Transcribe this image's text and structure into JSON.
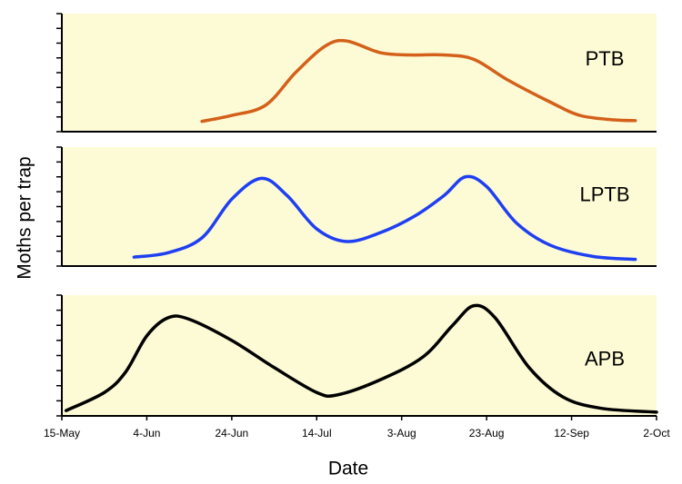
{
  "chart_data": [
    {
      "type": "line",
      "xlim": [
        0,
        140
      ],
      "ylim": [
        0,
        8
      ],
      "yticks": [
        0,
        1,
        2,
        3,
        4,
        5,
        6,
        7,
        8
      ],
      "series": [
        {
          "name": "PTB",
          "color": "#d4601a",
          "x": [
            33,
            40,
            48,
            55,
            62,
            67,
            75,
            82,
            90,
            97,
            105,
            115,
            122,
            130,
            135
          ],
          "values": [
            0.7,
            1.1,
            1.8,
            4.0,
            5.8,
            6.15,
            5.35,
            5.2,
            5.2,
            4.9,
            3.5,
            2.0,
            1.1,
            0.8,
            0.75
          ]
        }
      ]
    },
    {
      "type": "line",
      "ylabel": "Moths per trap",
      "xlim": [
        0,
        140
      ],
      "ylim": [
        0,
        8
      ],
      "yticks": [
        0,
        1,
        2,
        3,
        4,
        5,
        6,
        7,
        8
      ],
      "series": [
        {
          "name": "LPTB",
          "color": "#1f3ff2",
          "x": [
            17,
            25,
            33,
            40,
            47,
            53,
            60,
            67,
            75,
            83,
            90,
            95,
            100,
            107,
            115,
            125,
            135
          ],
          "values": [
            0.6,
            0.9,
            1.9,
            4.5,
            5.9,
            4.75,
            2.5,
            1.65,
            2.25,
            3.35,
            4.75,
            6.0,
            5.35,
            2.9,
            1.4,
            0.65,
            0.45
          ]
        }
      ]
    },
    {
      "type": "line",
      "xlabel": "Date",
      "xlim": [
        0,
        140
      ],
      "ylim": [
        0,
        8
      ],
      "yticks": [
        0,
        1,
        2,
        3,
        4,
        5,
        6,
        7,
        8
      ],
      "xticks": [
        {
          "value": 0,
          "label": "15-May"
        },
        {
          "value": 20,
          "label": "4-Jun"
        },
        {
          "value": 40,
          "label": "24-Jun"
        },
        {
          "value": 60,
          "label": "14-Jul"
        },
        {
          "value": 80,
          "label": "3-Aug"
        },
        {
          "value": 100,
          "label": "23-Aug"
        },
        {
          "value": 120,
          "label": "12-Sep"
        },
        {
          "value": 140,
          "label": "2-Oct"
        }
      ],
      "series": [
        {
          "name": "APB",
          "color": "#000000",
          "x": [
            1,
            10,
            15,
            20,
            25,
            30,
            40,
            50,
            60,
            65,
            75,
            85,
            92,
            97,
            102,
            110,
            118,
            127,
            140
          ],
          "values": [
            0.35,
            1.55,
            2.9,
            5.3,
            6.5,
            6.4,
            5.0,
            3.2,
            1.55,
            1.4,
            2.4,
            3.9,
            6.0,
            7.3,
            6.5,
            3.2,
            1.25,
            0.5,
            0.25
          ]
        }
      ]
    }
  ]
}
